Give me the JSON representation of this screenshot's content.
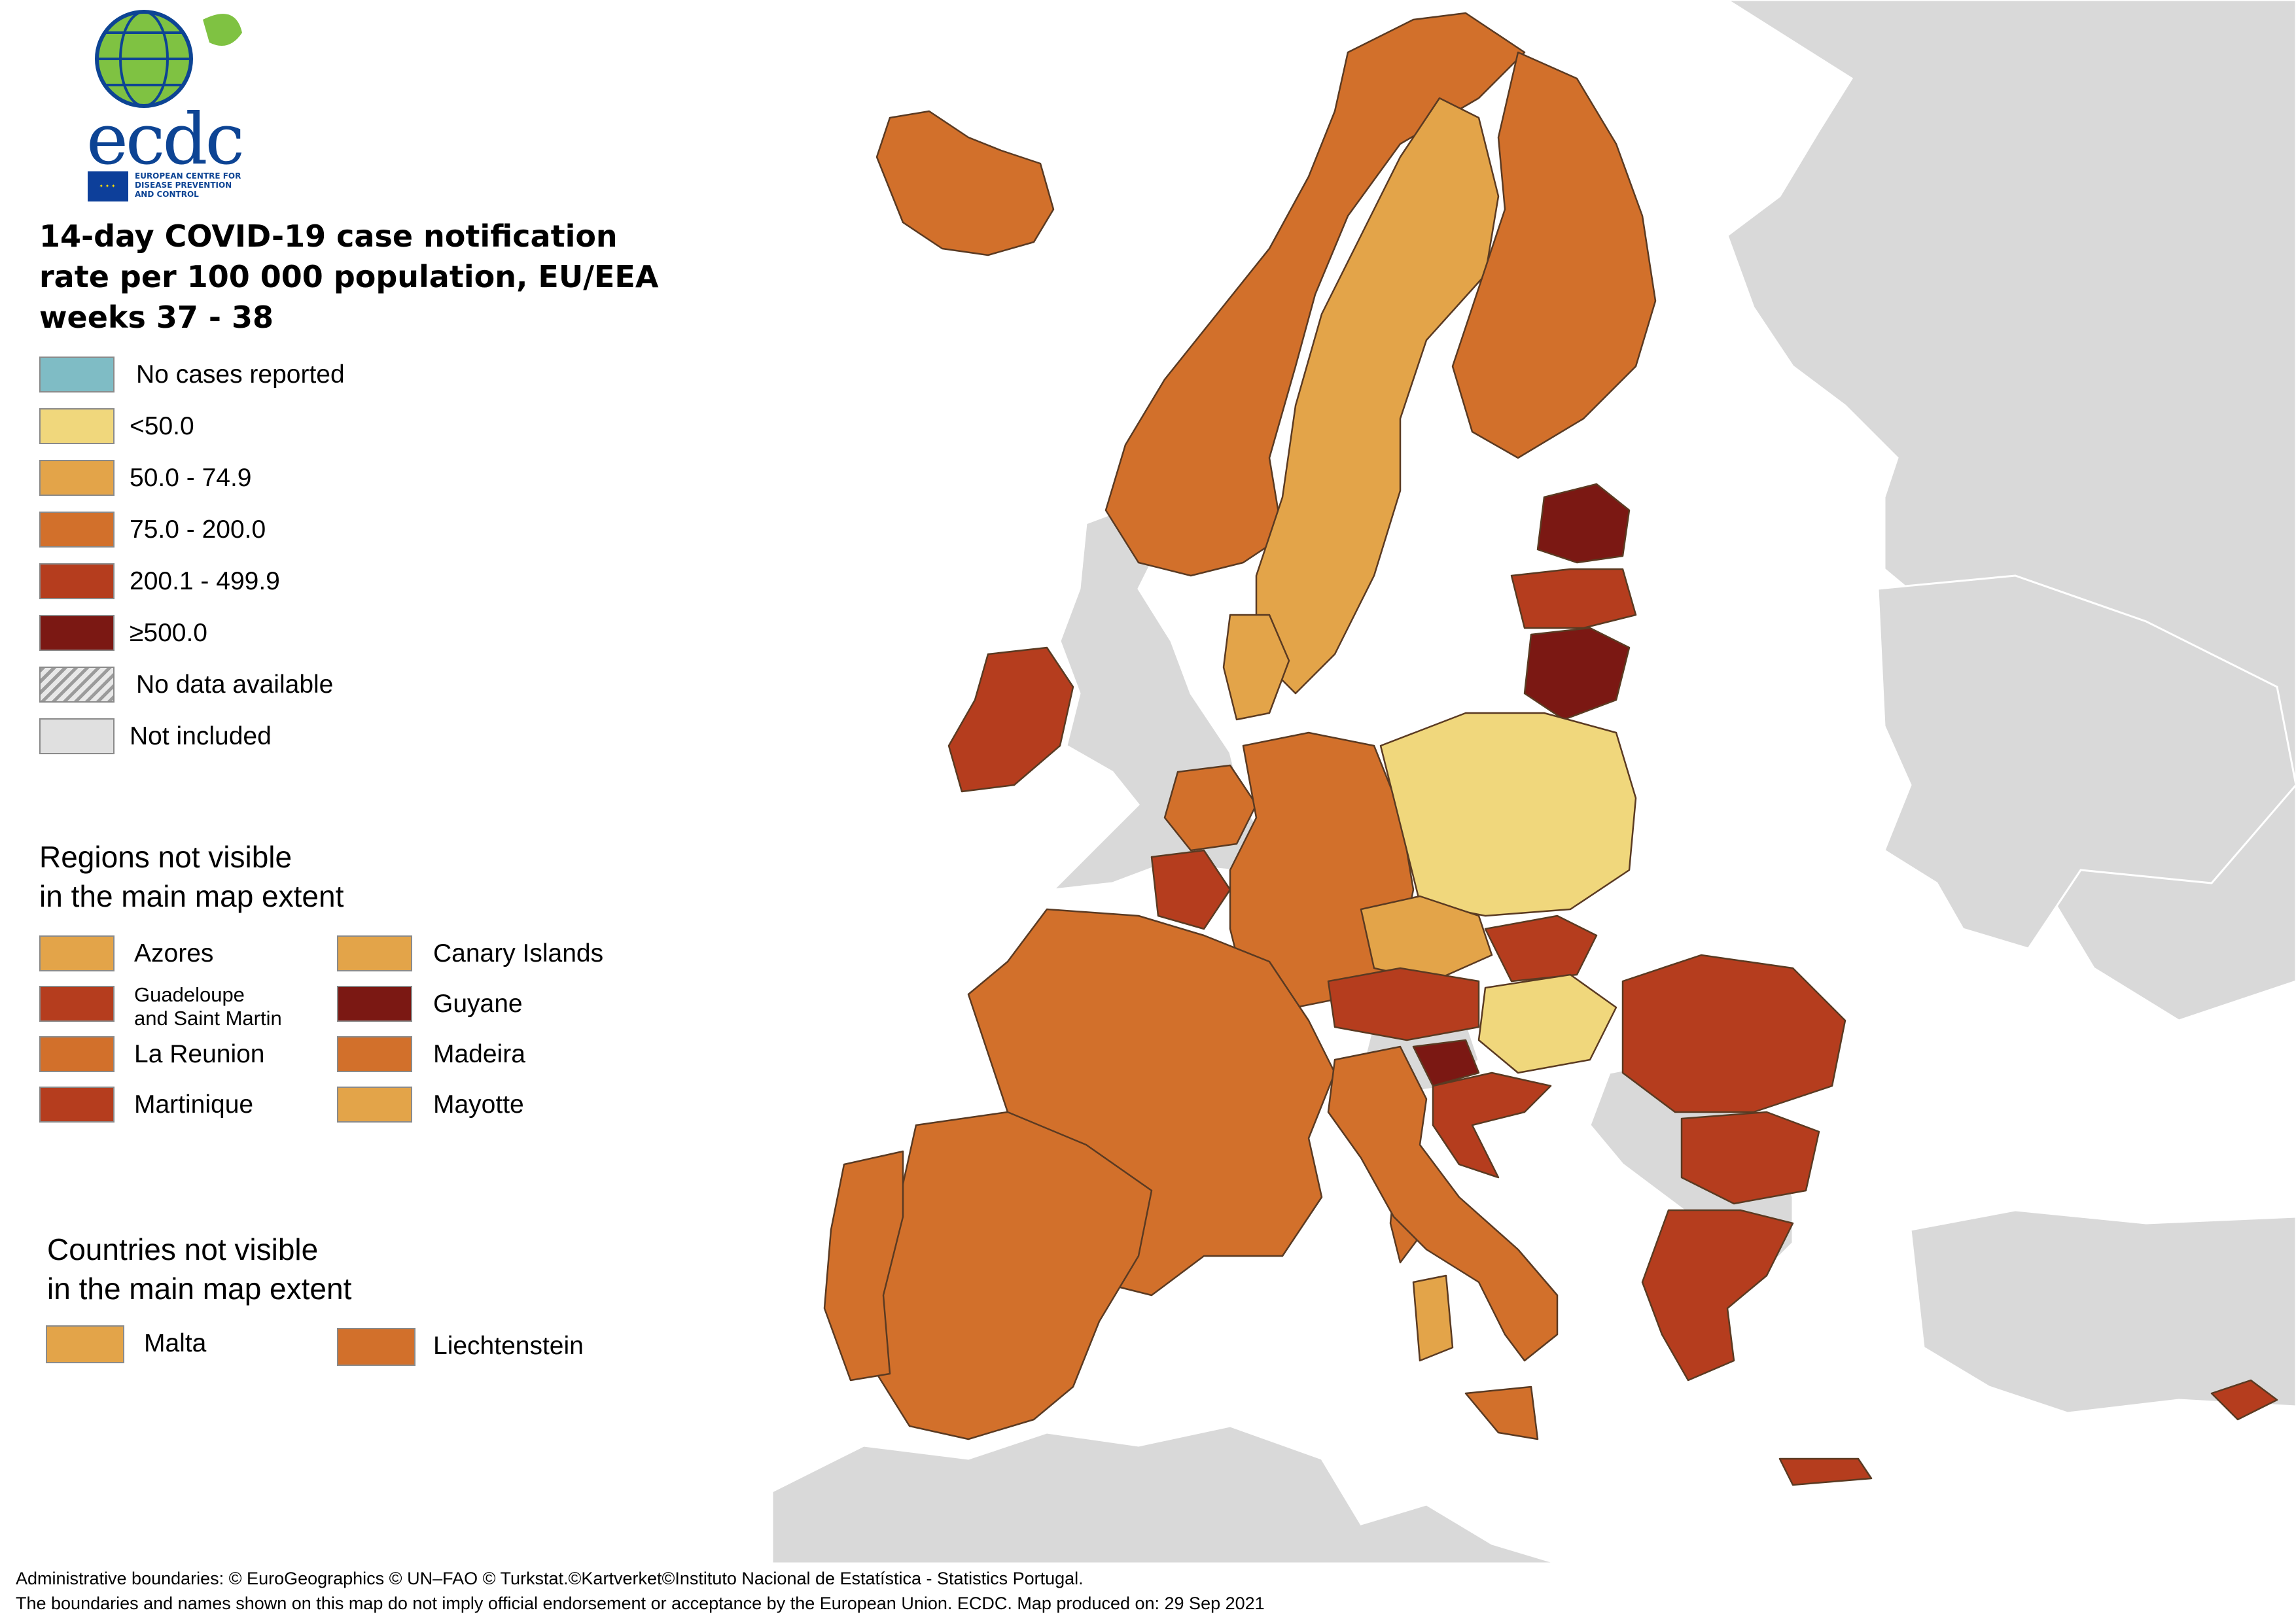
{
  "logo": {
    "name": "ecdc",
    "org_line1": "EUROPEAN CENTRE FOR",
    "org_line2": "DISEASE PREVENTION",
    "org_line3": "AND CONTROL"
  },
  "title": {
    "line1": "14-day COVID-19 case notification",
    "line2": "rate per 100 000 population, EU/EEA",
    "line3": "weeks 37 - 38"
  },
  "legend": {
    "items": [
      {
        "label": "No cases reported",
        "color": "#7fbcc5"
      },
      {
        "label": "<50.0",
        "color": "#f0d77c"
      },
      {
        "label": "50.0 - 74.9",
        "color": "#e3a449"
      },
      {
        "label": "75.0 - 200.0",
        "color": "#d2702b"
      },
      {
        "label": "200.1 - 499.9",
        "color": "#b53d1e"
      },
      {
        "label": "≥500.0",
        "color": "#7b1813"
      },
      {
        "label": "No data available",
        "color": "hatched"
      },
      {
        "label": "Not included",
        "color": "#e0e0e0"
      }
    ]
  },
  "regions_heading": {
    "line1": "Regions not visible",
    "line2": "in the main map extent"
  },
  "regions": [
    {
      "label": "Azores",
      "color": "#e3a449"
    },
    {
      "label": "Canary Islands",
      "color": "#e3a449"
    },
    {
      "label_line1": "Guadeloupe",
      "label_line2": "and Saint Martin",
      "color": "#b53d1e"
    },
    {
      "label": "Guyane",
      "color": "#7b1813"
    },
    {
      "label": "La Reunion",
      "color": "#d2702b"
    },
    {
      "label": "Madeira",
      "color": "#d2702b"
    },
    {
      "label": "Martinique",
      "color": "#b53d1e"
    },
    {
      "label": "Mayotte",
      "color": "#e3a449"
    }
  ],
  "countries_heading": {
    "line1": "Countries not visible",
    "line2": "in the main map extent"
  },
  "countries": [
    {
      "label": "Malta",
      "color": "#e3a449"
    },
    {
      "label": "Liechtenstein",
      "color": "#d2702b"
    }
  ],
  "footer": {
    "line1": "Administrative boundaries: © EuroGeographics © UN–FAO © Turkstat.©Kartverket©Instituto Nacional de Estatística - Statistics Portugal.",
    "line2": "The boundaries and names shown on this map do not imply official endorsement or acceptance by the European Union. ECDC. Map produced on: 29 Sep 2021"
  },
  "map": {
    "countries": [
      {
        "name": "Iceland",
        "class": "75.0 - 200.0",
        "color": "#d2702b"
      },
      {
        "name": "Norway",
        "class": "75.0 - 200.0",
        "color": "#d2702b"
      },
      {
        "name": "Sweden",
        "class": "50.0 - 74.9",
        "color": "#e3a449"
      },
      {
        "name": "Finland",
        "class": "75.0 - 200.0",
        "color": "#d2702b"
      },
      {
        "name": "Estonia",
        "class": "≥500.0",
        "color": "#7b1813"
      },
      {
        "name": "Latvia",
        "class": "200.1 - 499.9",
        "color": "#b53d1e"
      },
      {
        "name": "Lithuania",
        "class": "≥500.0",
        "color": "#7b1813"
      },
      {
        "name": "Ireland",
        "class": "200.1 - 499.9",
        "color": "#b53d1e"
      },
      {
        "name": "Denmark",
        "class": "50.0 - 74.9",
        "color": "#e3a449"
      },
      {
        "name": "Netherlands",
        "class": "75.0 - 200.0",
        "color": "#d2702b"
      },
      {
        "name": "Belgium",
        "class": "200.1 - 499.9",
        "color": "#b53d1e"
      },
      {
        "name": "Germany",
        "class": "75.0 - 200.0",
        "color": "#d2702b"
      },
      {
        "name": "Poland",
        "class": "<50.0",
        "color": "#f0d77c"
      },
      {
        "name": "France",
        "class": "75.0 - 200.0",
        "color": "#d2702b"
      },
      {
        "name": "Czechia",
        "class": "50.0 - 74.9",
        "color": "#e3a449"
      },
      {
        "name": "Slovakia",
        "class": "200.1 - 499.9",
        "color": "#b53d1e"
      },
      {
        "name": "Austria",
        "class": "200.1 - 499.9",
        "color": "#b53d1e"
      },
      {
        "name": "Hungary",
        "class": "<50.0",
        "color": "#f0d77c"
      },
      {
        "name": "Slovenia",
        "class": "≥500.0",
        "color": "#7b1813"
      },
      {
        "name": "Croatia",
        "class": "200.1 - 499.9",
        "color": "#b53d1e"
      },
      {
        "name": "Romania",
        "class": "200.1 - 499.9",
        "color": "#b53d1e"
      },
      {
        "name": "Bulgaria",
        "class": "200.1 - 499.9",
        "color": "#b53d1e"
      },
      {
        "name": "Greece",
        "class": "200.1 - 499.9",
        "color": "#b53d1e"
      },
      {
        "name": "Italy",
        "class": "75.0 - 200.0",
        "color": "#d2702b"
      },
      {
        "name": "Spain",
        "class": "75.0 - 200.0",
        "color": "#d2702b"
      },
      {
        "name": "Portugal",
        "class": "75.0 - 200.0",
        "color": "#d2702b"
      },
      {
        "name": "Cyprus",
        "class": "200.1 - 499.9",
        "color": "#b53d1e"
      }
    ]
  }
}
